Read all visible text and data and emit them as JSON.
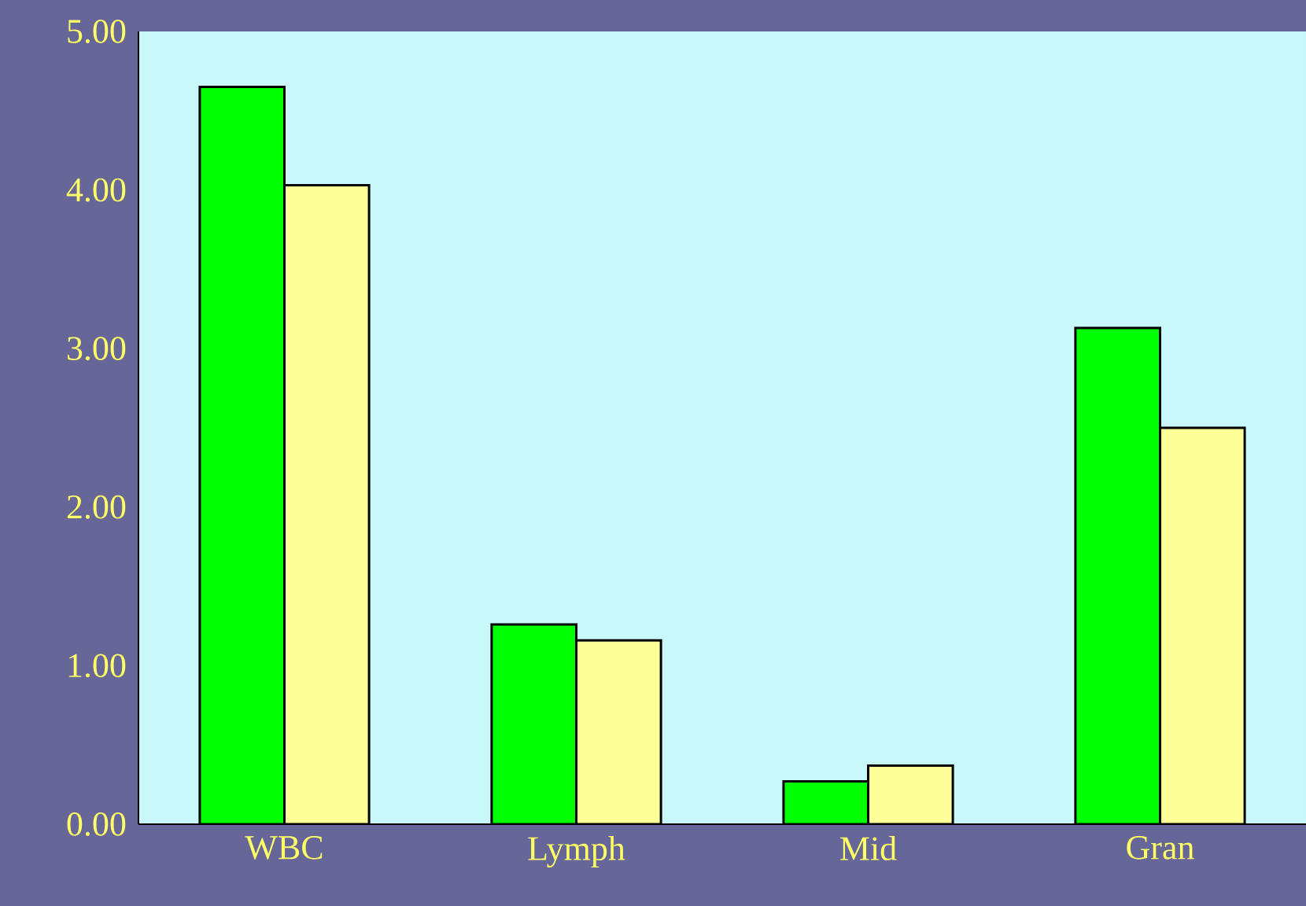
{
  "chart_data": {
    "type": "bar",
    "categories": [
      "WBC",
      "Lymph",
      "Mid",
      "Gran"
    ],
    "series": [
      {
        "color": "#00ff00",
        "values": [
          4.65,
          1.26,
          0.27,
          3.13
        ]
      },
      {
        "color": "#ffff99",
        "values": [
          4.03,
          1.16,
          0.37,
          2.5
        ]
      }
    ],
    "ylim": [
      0,
      5
    ],
    "yticks": [
      {
        "value": 0,
        "label": "0.00"
      },
      {
        "value": 1,
        "label": "1.00"
      },
      {
        "value": 2,
        "label": "2.00"
      },
      {
        "value": 3,
        "label": "3.00"
      },
      {
        "value": 4,
        "label": "4.00"
      },
      {
        "value": 5,
        "label": "5.00"
      }
    ],
    "grid": false
  }
}
